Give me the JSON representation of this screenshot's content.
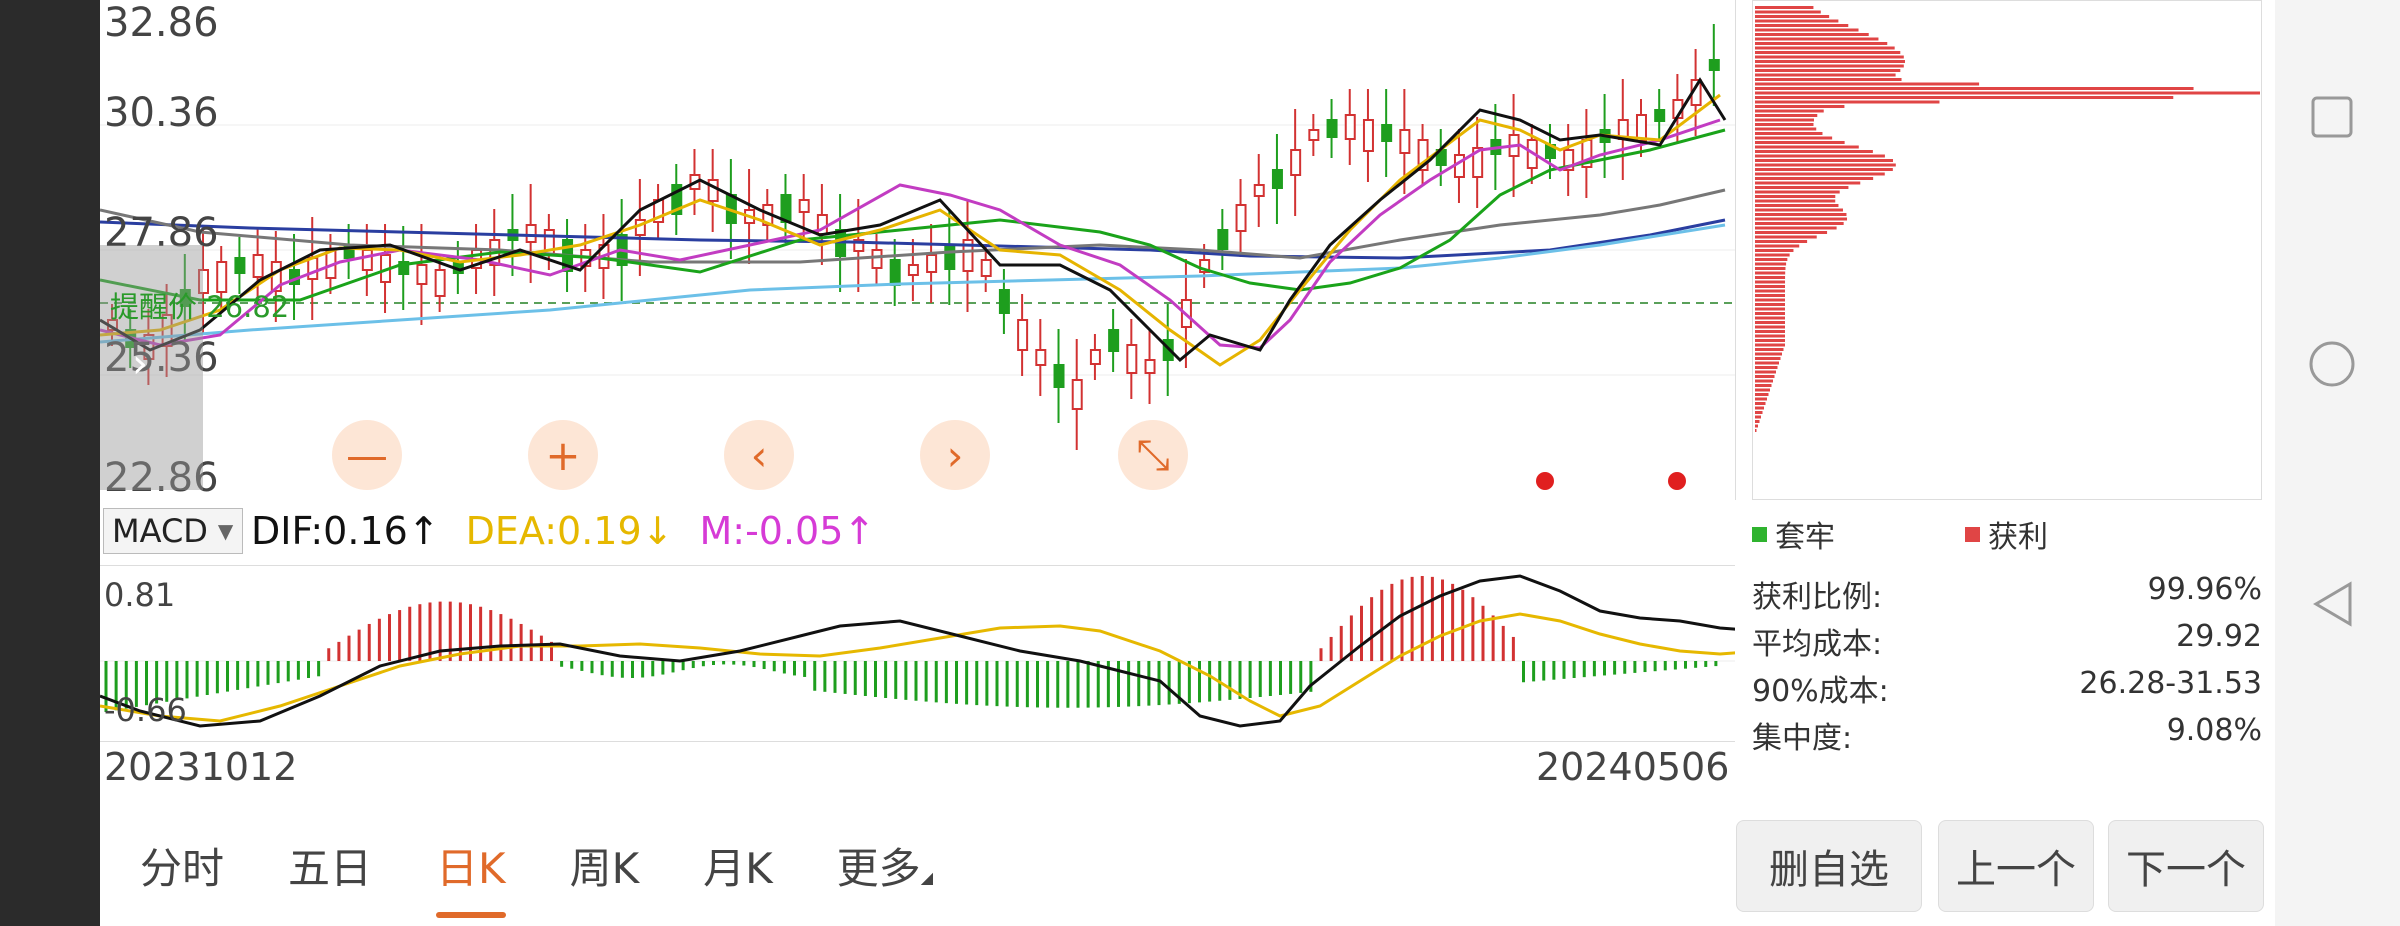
{
  "price_axis": [
    "32.86",
    "30.36",
    "27.86",
    "25.36",
    "22.86"
  ],
  "remind_price_label": "提醒价 26.82",
  "controls": [
    {
      "name": "zoom-out",
      "glyph": "—"
    },
    {
      "name": "zoom-in",
      "glyph": "+"
    },
    {
      "name": "prev",
      "glyph": "‹"
    },
    {
      "name": "next",
      "glyph": "›"
    },
    {
      "name": "collapse",
      "glyph": "⤡"
    }
  ],
  "macd": {
    "selector": "MACD",
    "dif": "DIF:0.16↑",
    "dea": "DEA:0.19↓",
    "m": "M:-0.05↑",
    "axis_top": "0.81",
    "axis_bottom": "-0.66"
  },
  "dates": {
    "start": "20231012",
    "end": "20240506"
  },
  "chip": {
    "legend": [
      {
        "label": "套牢",
        "color": "#2fb32f"
      },
      {
        "label": "获利",
        "color": "#e04545"
      }
    ],
    "stats": [
      {
        "label": "获利比例:",
        "value": "99.96%"
      },
      {
        "label": "平均成本:",
        "value": "29.92"
      },
      {
        "label": "90%成本:",
        "value": "26.28-31.53"
      },
      {
        "label": "集中度:",
        "value": "9.08%"
      }
    ]
  },
  "tabs": [
    {
      "label": "分时",
      "active": false
    },
    {
      "label": "五日",
      "active": false
    },
    {
      "label": "日K",
      "active": true
    },
    {
      "label": "周K",
      "active": false
    },
    {
      "label": "月K",
      "active": false
    },
    {
      "label": "更多",
      "active": false
    }
  ],
  "buttons": {
    "remove": "删自选",
    "prev": "上一个",
    "next": "下一个"
  },
  "colors": {
    "up": "#d23232",
    "down": "#1e9e1e",
    "accent": "#e06a2a"
  }
}
